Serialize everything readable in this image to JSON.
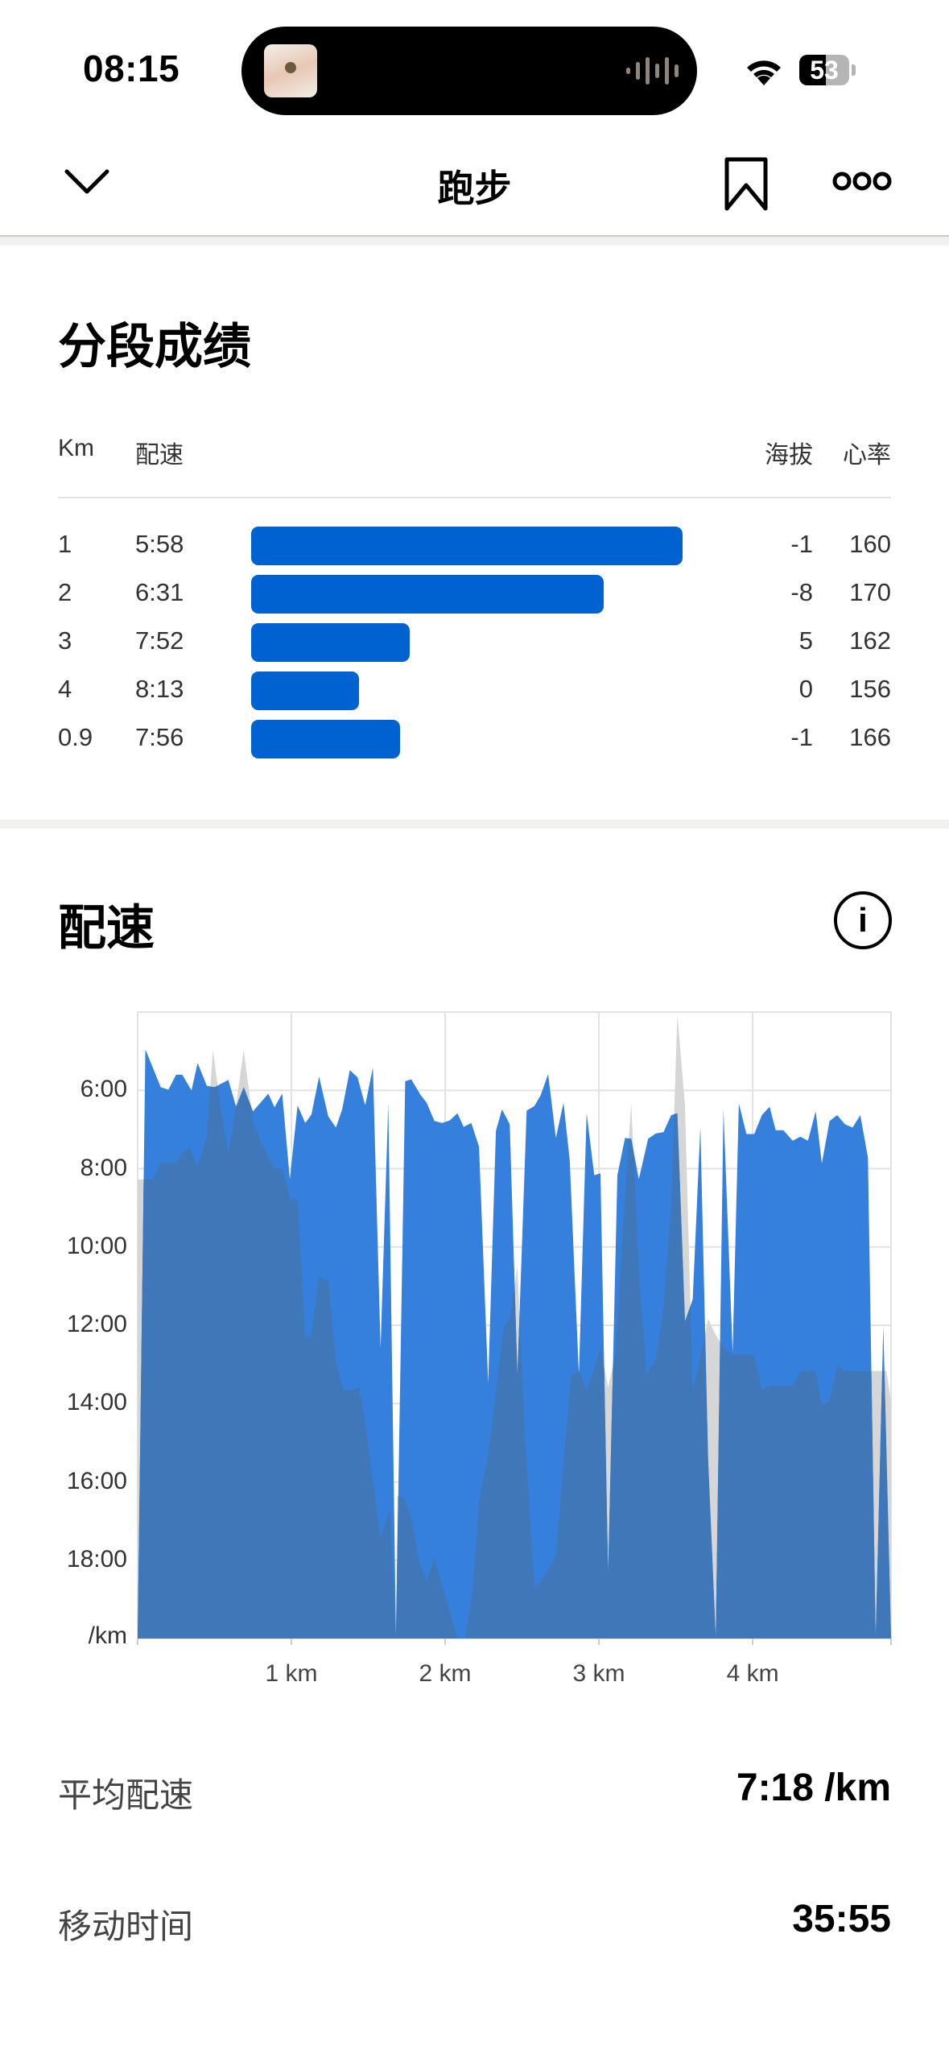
{
  "status_bar": {
    "time": "08:15",
    "battery": "53",
    "icons": [
      "now-playing-album-art",
      "audio-waveform-icon",
      "wifi-icon",
      "battery-icon"
    ]
  },
  "nav": {
    "title": "跑步",
    "back_icon": "chevron-down-icon",
    "bookmark_icon": "bookmark-icon",
    "more_icon": "more-icon"
  },
  "splits": {
    "title": "分段成绩",
    "headers": {
      "km": "Km",
      "pace": "配速",
      "elevation": "海拔",
      "heart_rate": "心率"
    },
    "rows": [
      {
        "km": "1",
        "pace": "5:58",
        "elevation": "-1",
        "heart_rate": "160"
      },
      {
        "km": "2",
        "pace": "6:31",
        "elevation": "-8",
        "heart_rate": "170"
      },
      {
        "km": "3",
        "pace": "7:52",
        "elevation": "5",
        "heart_rate": "162"
      },
      {
        "km": "4",
        "pace": "8:13",
        "elevation": "0",
        "heart_rate": "156"
      },
      {
        "km": "0.9",
        "pace": "7:56",
        "elevation": "-1",
        "heart_rate": "166"
      }
    ],
    "bar_color": "#0062d1"
  },
  "pace_section": {
    "title": "配速",
    "info_icon": "info-icon"
  },
  "chart_data": {
    "type": "area",
    "y_ticks": [
      "6:00",
      "8:00",
      "10:00",
      "12:00",
      "14:00",
      "16:00",
      "18:00"
    ],
    "y_unit_label": "/km",
    "ylim": [
      "4:00",
      "20:00"
    ],
    "y_inverted": true,
    "x_ticks": [
      "1 km",
      "2 km",
      "3 km",
      "4 km"
    ],
    "xlim": [
      0,
      4.9
    ],
    "grid": true,
    "colors": {
      "pace": "#3580dc",
      "elevation": "#d6d6d6",
      "overlap": "#3f77b8"
    },
    "pace": [
      [
        0,
        "20:00"
      ],
      [
        0.05,
        "4:57"
      ],
      [
        0.15,
        "5:55"
      ],
      [
        0.2,
        "5:59"
      ],
      [
        0.25,
        "5:36"
      ],
      [
        0.29,
        "5:36"
      ],
      [
        0.35,
        "6:00"
      ],
      [
        0.39,
        "5:18"
      ],
      [
        0.45,
        "5:53"
      ],
      [
        0.5,
        "5:55"
      ],
      [
        0.59,
        "5:44"
      ],
      [
        0.64,
        "6:25"
      ],
      [
        0.69,
        "5:55"
      ],
      [
        0.75,
        "6:32"
      ],
      [
        0.85,
        "6:05"
      ],
      [
        0.89,
        "6:26"
      ],
      [
        0.94,
        "6:05"
      ],
      [
        0.99,
        "8:16"
      ],
      [
        1.04,
        "6:23"
      ],
      [
        1.09,
        "6:50"
      ],
      [
        1.13,
        "6:37"
      ],
      [
        1.18,
        "5:39"
      ],
      [
        1.24,
        "6:40"
      ],
      [
        1.29,
        "6:57"
      ],
      [
        1.33,
        "6:29"
      ],
      [
        1.38,
        "5:29"
      ],
      [
        1.43,
        "5:40"
      ],
      [
        1.48,
        "6:23"
      ],
      [
        1.53,
        "5:25"
      ],
      [
        1.58,
        "12:35"
      ],
      [
        1.63,
        "6:20"
      ],
      [
        1.68,
        "19:54"
      ],
      [
        1.74,
        "5:46"
      ],
      [
        1.78,
        "5:43"
      ],
      [
        1.84,
        "6:07"
      ],
      [
        1.88,
        "6:19"
      ],
      [
        1.93,
        "6:47"
      ],
      [
        1.98,
        "6:50"
      ],
      [
        2.03,
        "6:46"
      ],
      [
        2.08,
        "6:35"
      ],
      [
        2.12,
        "6:56"
      ],
      [
        2.17,
        "6:50"
      ],
      [
        2.22,
        "7:26"
      ],
      [
        2.28,
        "13:29"
      ],
      [
        2.33,
        "7:02"
      ],
      [
        2.37,
        "6:29"
      ],
      [
        2.42,
        "6:52"
      ],
      [
        2.47,
        "13:16"
      ],
      [
        2.53,
        "6:31"
      ],
      [
        2.58,
        "6:24"
      ],
      [
        2.62,
        "6:08"
      ],
      [
        2.67,
        "5:35"
      ],
      [
        2.72,
        "7:13"
      ],
      [
        2.77,
        "6:19"
      ],
      [
        2.81,
        "7:47"
      ],
      [
        2.87,
        "13:16"
      ],
      [
        2.92,
        "6:35"
      ],
      [
        2.97,
        "8:10"
      ],
      [
        3.01,
        "8:07"
      ],
      [
        3.06,
        "18:21"
      ],
      [
        3.12,
        "8:10"
      ],
      [
        3.17,
        "7:13"
      ],
      [
        3.21,
        "7:14"
      ],
      [
        3.26,
        "8:16"
      ],
      [
        3.32,
        "7:14"
      ],
      [
        3.37,
        "7:06"
      ],
      [
        3.42,
        "7:04"
      ],
      [
        3.47,
        "6:38"
      ],
      [
        3.51,
        "6:35"
      ],
      [
        3.56,
        "11:54"
      ],
      [
        3.61,
        "11:20"
      ],
      [
        3.66,
        "6:56"
      ],
      [
        3.71,
        "15:25"
      ],
      [
        3.76,
        "20:00"
      ],
      [
        3.81,
        "6:29"
      ],
      [
        3.87,
        "12:42"
      ],
      [
        3.91,
        "6:20"
      ],
      [
        3.96,
        "7:07"
      ],
      [
        4.01,
        "7:07"
      ],
      [
        4.06,
        "6:38"
      ],
      [
        4.11,
        "6:25"
      ],
      [
        4.15,
        "7:01"
      ],
      [
        4.2,
        "7:01"
      ],
      [
        4.26,
        "7:17"
      ],
      [
        4.31,
        "7:11"
      ],
      [
        4.36,
        "7:17"
      ],
      [
        4.41,
        "6:32"
      ],
      [
        4.45,
        "7:52"
      ],
      [
        4.5,
        "6:47"
      ],
      [
        4.55,
        "6:38"
      ],
      [
        4.6,
        "6:52"
      ],
      [
        4.65,
        "6:57"
      ],
      [
        4.7,
        "6:38"
      ],
      [
        4.75,
        "7:43"
      ],
      [
        4.8,
        "20:00"
      ],
      [
        4.85,
        "12:01"
      ],
      [
        4.9,
        "20:00"
      ]
    ],
    "elevation_relative": [
      [
        0,
        73.3
      ],
      [
        0.1,
        73.3
      ],
      [
        0.15,
        75.9
      ],
      [
        0.25,
        75.9
      ],
      [
        0.29,
        77.6
      ],
      [
        0.34,
        78.3
      ],
      [
        0.39,
        75.3
      ],
      [
        0.45,
        80.3
      ],
      [
        0.49,
        94
      ],
      [
        0.54,
        84.5
      ],
      [
        0.59,
        77.3
      ],
      [
        0.64,
        85.2
      ],
      [
        0.69,
        94
      ],
      [
        0.75,
        82.4
      ],
      [
        0.8,
        79.5
      ],
      [
        0.85,
        76.9
      ],
      [
        0.89,
        75.1
      ],
      [
        0.94,
        75
      ],
      [
        0.99,
        70.2
      ],
      [
        1.04,
        70
      ],
      [
        1.09,
        47.8
      ],
      [
        1.13,
        48.7
      ],
      [
        1.18,
        57.7
      ],
      [
        1.24,
        57
      ],
      [
        1.29,
        43.9
      ],
      [
        1.34,
        39.6
      ],
      [
        1.39,
        39.6
      ],
      [
        1.44,
        40.1
      ],
      [
        1.48,
        34.4
      ],
      [
        1.58,
        15.9
      ],
      [
        1.64,
        20.7
      ],
      [
        1.68,
        0
      ],
      [
        1.69,
        22.8
      ],
      [
        1.73,
        22.4
      ],
      [
        1.78,
        19.3
      ],
      [
        1.83,
        12.4
      ],
      [
        1.88,
        9.2
      ],
      [
        1.93,
        12.9
      ],
      [
        2.08,
        0
      ],
      [
        2.13,
        0
      ],
      [
        2.18,
        8
      ],
      [
        2.22,
        21.7
      ],
      [
        2.28,
        29.5
      ],
      [
        2.33,
        39.4
      ],
      [
        2.38,
        49.6
      ],
      [
        2.42,
        51
      ],
      [
        2.47,
        59.4
      ],
      [
        2.52,
        31.6
      ],
      [
        2.58,
        8.3
      ],
      [
        2.62,
        9
      ],
      [
        2.67,
        11.1
      ],
      [
        2.72,
        13.1
      ],
      [
        2.77,
        28.1
      ],
      [
        2.82,
        41.8
      ],
      [
        2.87,
        42.9
      ],
      [
        2.92,
        39.7
      ],
      [
        2.97,
        42.9
      ],
      [
        3.01,
        46.4
      ],
      [
        3.06,
        40.1
      ],
      [
        3.11,
        45.7
      ],
      [
        3.17,
        70.7
      ],
      [
        3.21,
        85.5
      ],
      [
        3.26,
        58.4
      ],
      [
        3.31,
        42.2
      ],
      [
        3.37,
        44.6
      ],
      [
        3.42,
        52.8
      ],
      [
        3.47,
        69
      ],
      [
        3.51,
        99.6
      ],
      [
        3.56,
        85.2
      ],
      [
        3.61,
        39.4
      ],
      [
        3.66,
        45
      ],
      [
        3.71,
        51
      ],
      [
        3.76,
        48.5
      ],
      [
        3.81,
        46.4
      ],
      [
        3.87,
        45.3
      ],
      [
        4.01,
        45.3
      ],
      [
        4.06,
        39.7
      ],
      [
        4.11,
        40.3
      ],
      [
        4.26,
        40.3
      ],
      [
        4.31,
        42.7
      ],
      [
        4.41,
        42.7
      ],
      [
        4.45,
        37.2
      ],
      [
        4.5,
        37.9
      ],
      [
        4.55,
        43.6
      ],
      [
        4.6,
        42.7
      ],
      [
        4.87,
        42.7
      ],
      [
        4.9,
        37.9
      ]
    ]
  },
  "stats": [
    {
      "label": "平均配速",
      "value": "7:18 /km"
    },
    {
      "label": "移动时间",
      "value": "35:55"
    }
  ]
}
